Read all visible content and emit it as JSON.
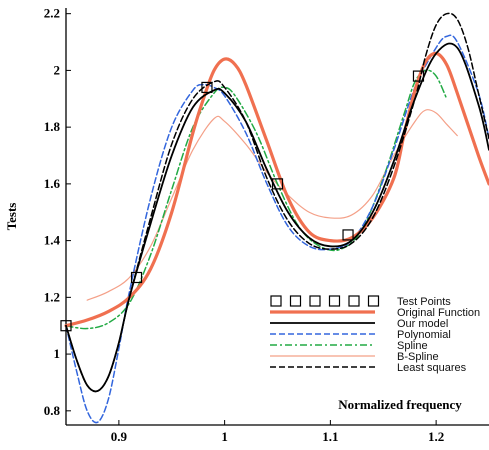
{
  "chart_data": {
    "type": "line",
    "title": "",
    "xlabel": "Normalized frequency",
    "ylabel": "Tests",
    "xlim": [
      0.85,
      1.25
    ],
    "ylim": [
      0.75,
      2.22
    ],
    "x_ticks": [
      0.9,
      1,
      1.1,
      1.2
    ],
    "x_tick_labels": [
      "0.9",
      "1",
      "1.1",
      "1.2"
    ],
    "y_ticks": [
      0.8,
      1,
      1.2,
      1.4,
      1.6,
      1.8,
      2,
      2.2
    ],
    "y_tick_labels": [
      "0.8",
      "1",
      "1.2",
      "1.4",
      "1.6",
      "1.8",
      "2",
      "2.2"
    ],
    "grid": false,
    "legend_position": "bottom-right",
    "test_points": {
      "name": "Test Points",
      "x": [
        0.85,
        0.9167,
        0.9833,
        1.05,
        1.1167,
        1.1833
      ],
      "y": [
        1.1,
        1.27,
        1.94,
        1.6,
        1.42,
        1.98
      ]
    },
    "series": [
      {
        "name": "Original Function",
        "color": "#f07050",
        "style": "solid-thick",
        "x": [
          0.85,
          0.87,
          0.89,
          0.91,
          0.93,
          0.95,
          0.97,
          0.98,
          0.99,
          1.0,
          1.01,
          1.02,
          1.04,
          1.06,
          1.08,
          1.1,
          1.12,
          1.14,
          1.16,
          1.17,
          1.18,
          1.19,
          1.2,
          1.21,
          1.22,
          1.24,
          1.25
        ],
        "y": [
          1.1,
          1.12,
          1.15,
          1.2,
          1.3,
          1.5,
          1.78,
          1.9,
          2.0,
          2.04,
          2.02,
          1.95,
          1.75,
          1.55,
          1.43,
          1.4,
          1.41,
          1.48,
          1.62,
          1.78,
          1.93,
          2.03,
          2.06,
          2.02,
          1.92,
          1.7,
          1.6
        ]
      },
      {
        "name": "Our model",
        "color": "#000000",
        "style": "solid",
        "x": [
          0.85,
          0.86,
          0.87,
          0.88,
          0.89,
          0.9,
          0.91,
          0.93,
          0.95,
          0.97,
          0.99,
          1.0,
          1.02,
          1.04,
          1.06,
          1.08,
          1.1,
          1.12,
          1.14,
          1.16,
          1.18,
          1.2,
          1.22,
          1.24,
          1.25
        ],
        "y": [
          1.1,
          0.98,
          0.89,
          0.87,
          0.92,
          1.04,
          1.2,
          1.46,
          1.7,
          1.87,
          1.93,
          1.92,
          1.82,
          1.65,
          1.5,
          1.41,
          1.38,
          1.4,
          1.5,
          1.68,
          1.9,
          2.06,
          2.08,
          1.88,
          1.72
        ]
      },
      {
        "name": "Polynomial",
        "color": "#3366dd",
        "style": "dashed",
        "x": [
          0.85,
          0.86,
          0.87,
          0.88,
          0.89,
          0.9,
          0.91,
          0.93,
          0.95,
          0.97,
          0.98,
          0.99,
          1.0,
          1.02,
          1.04,
          1.06,
          1.08,
          1.1,
          1.12,
          1.14,
          1.16,
          1.18,
          1.2,
          1.21,
          1.22,
          1.24,
          1.25
        ],
        "y": [
          1.1,
          0.94,
          0.8,
          0.76,
          0.84,
          1.02,
          1.22,
          1.55,
          1.8,
          1.93,
          1.95,
          1.94,
          1.91,
          1.78,
          1.6,
          1.45,
          1.38,
          1.37,
          1.4,
          1.52,
          1.72,
          1.94,
          2.08,
          2.12,
          2.1,
          1.92,
          1.76
        ]
      },
      {
        "name": "Spline",
        "color": "#22aa44",
        "style": "dashdot",
        "x": [
          0.85,
          0.87,
          0.89,
          0.91,
          0.93,
          0.95,
          0.97,
          0.99,
          1.0,
          1.01,
          1.03,
          1.05,
          1.07,
          1.09,
          1.11,
          1.13,
          1.15,
          1.17,
          1.18,
          1.19,
          1.2,
          1.21
        ],
        "y": [
          1.1,
          1.09,
          1.11,
          1.18,
          1.35,
          1.58,
          1.8,
          1.92,
          1.94,
          1.91,
          1.78,
          1.6,
          1.45,
          1.38,
          1.37,
          1.44,
          1.62,
          1.85,
          1.96,
          2.0,
          1.98,
          1.9
        ]
      },
      {
        "name": "B-Spline",
        "color": "#f4a088",
        "style": "solid-thin",
        "x": [
          0.87,
          0.89,
          0.91,
          0.93,
          0.95,
          0.97,
          0.99,
          1.0,
          1.02,
          1.04,
          1.06,
          1.08,
          1.1,
          1.12,
          1.14,
          1.16,
          1.18,
          1.19,
          1.2,
          1.21,
          1.22
        ],
        "y": [
          1.19,
          1.22,
          1.27,
          1.38,
          1.55,
          1.72,
          1.83,
          1.82,
          1.74,
          1.64,
          1.56,
          1.5,
          1.48,
          1.49,
          1.56,
          1.7,
          1.82,
          1.86,
          1.85,
          1.81,
          1.77
        ]
      },
      {
        "name": "Least squares",
        "color": "#000000",
        "style": "dashed",
        "x": [
          0.85,
          0.86,
          0.87,
          0.88,
          0.89,
          0.9,
          0.91,
          0.93,
          0.95,
          0.97,
          0.99,
          1.0,
          1.02,
          1.04,
          1.06,
          1.08,
          1.1,
          1.12,
          1.14,
          1.16,
          1.18,
          1.19,
          1.2,
          1.21,
          1.22,
          1.23,
          1.24,
          1.25
        ],
        "y": [
          1.1,
          0.98,
          0.89,
          0.87,
          0.92,
          1.04,
          1.2,
          1.48,
          1.74,
          1.9,
          1.96,
          1.94,
          1.82,
          1.62,
          1.47,
          1.39,
          1.37,
          1.39,
          1.48,
          1.66,
          1.9,
          2.05,
          2.16,
          2.2,
          2.18,
          2.08,
          1.92,
          1.76
        ]
      }
    ]
  }
}
